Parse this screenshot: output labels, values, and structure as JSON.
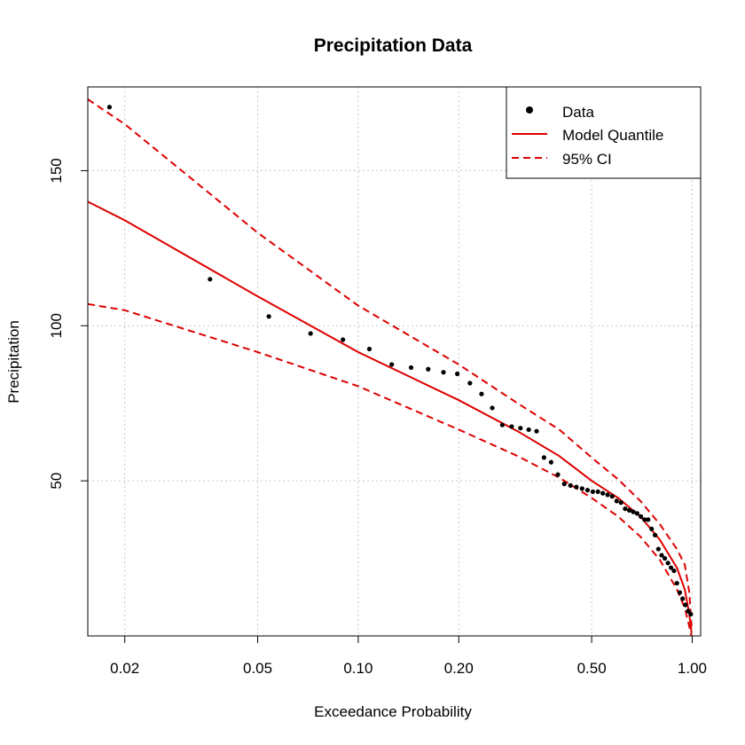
{
  "chart_data": {
    "type": "scatter",
    "title": "Precipitation Data",
    "xlabel": "Exceedance Probability",
    "ylabel": "Precipitation",
    "x_scale": "log",
    "xlim": [
      0.0155,
      1.06
    ],
    "ylim": [
      0,
      177
    ],
    "x_ticks": [
      0.02,
      0.05,
      0.1,
      0.2,
      0.5,
      1.0
    ],
    "x_tick_labels": [
      "0.02",
      "0.05",
      "0.10",
      "0.20",
      "0.50",
      "1.00"
    ],
    "y_ticks": [
      50,
      100,
      150
    ],
    "y_tick_labels": [
      "50",
      "100",
      "150"
    ],
    "grid": true,
    "legend_position": "top-right",
    "legend": [
      "Data",
      "Model Quantile",
      "95% CI"
    ],
    "colors": {
      "data": "#000000",
      "model": "#dd0000",
      "ci": "#dd0000",
      "grid": "#c8c8c8"
    },
    "series": [
      {
        "name": "Data",
        "style": "points",
        "x": [
          0.018,
          0.036,
          0.054,
          0.072,
          0.09,
          0.108,
          0.126,
          0.144,
          0.162,
          0.18,
          0.198,
          0.216,
          0.234,
          0.252,
          0.27,
          0.288,
          0.306,
          0.324,
          0.342,
          0.36,
          0.378,
          0.396,
          0.414,
          0.432,
          0.45,
          0.468,
          0.486,
          0.504,
          0.522,
          0.54,
          0.558,
          0.576,
          0.594,
          0.612,
          0.63,
          0.648,
          0.666,
          0.684,
          0.702,
          0.72,
          0.738,
          0.756,
          0.774,
          0.792,
          0.81,
          0.828,
          0.846,
          0.864,
          0.882,
          0.9,
          0.918,
          0.936,
          0.954,
          0.972,
          0.99
        ],
        "y": [
          170.5,
          115,
          103,
          97.5,
          95.5,
          92.5,
          87.5,
          86.5,
          86,
          85,
          84.5,
          81.5,
          78,
          73.5,
          68,
          67.5,
          67,
          66.5,
          66,
          57.5,
          56,
          52,
          49,
          48.5,
          48,
          47.5,
          47,
          46.5,
          46.5,
          46,
          45.5,
          45,
          43.5,
          43,
          41,
          40.5,
          40,
          39.5,
          38.5,
          37.5,
          37.5,
          34.5,
          32.5,
          28,
          26,
          25,
          23.5,
          22,
          21,
          17,
          14,
          12,
          10,
          8,
          7
        ]
      },
      {
        "name": "Model Quantile",
        "style": "solid",
        "x": [
          0.0155,
          0.02,
          0.05,
          0.1,
          0.2,
          0.3,
          0.4,
          0.5,
          0.6,
          0.7,
          0.8,
          0.9,
          0.95,
          0.98,
          0.995
        ],
        "y": [
          140,
          134,
          109.5,
          91.5,
          76,
          66,
          58,
          50,
          44.5,
          38.5,
          31,
          22,
          15,
          7,
          1
        ]
      },
      {
        "name": "95% CI",
        "style": "dashed",
        "x": [
          0.0155,
          0.02,
          0.05,
          0.1,
          0.2,
          0.3,
          0.4,
          0.5,
          0.6,
          0.7,
          0.8,
          0.9,
          0.95,
          0.98,
          0.995
        ],
        "y": [
          173,
          165,
          130,
          106.5,
          87.5,
          75,
          66.5,
          57.5,
          50.5,
          43.5,
          36,
          28,
          23,
          14,
          3
        ]
      },
      {
        "name": "",
        "style": "dashed",
        "x": [
          0.0155,
          0.02,
          0.05,
          0.1,
          0.2,
          0.3,
          0.4,
          0.5,
          0.6,
          0.7,
          0.8,
          0.9,
          0.95,
          0.98,
          0.995
        ],
        "y": [
          107,
          105,
          91.5,
          80.5,
          66.5,
          58,
          51,
          44.5,
          38.5,
          32,
          24.5,
          15,
          9,
          3,
          0
        ]
      }
    ]
  }
}
